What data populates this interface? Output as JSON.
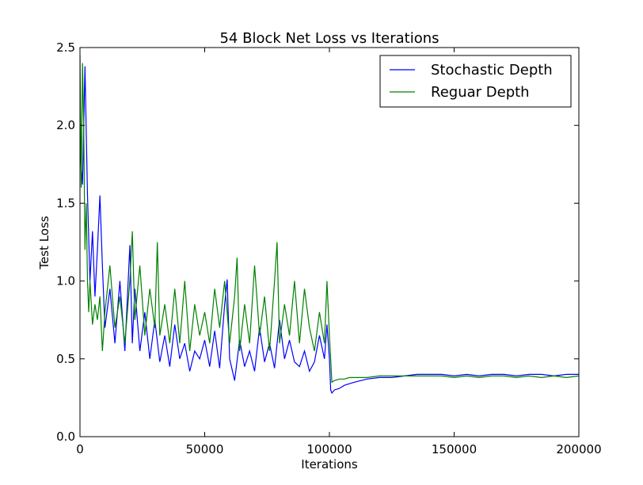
{
  "chart_data": {
    "type": "line",
    "title": "54 Block Net Loss vs Iterations",
    "xlabel": "Iterations",
    "ylabel": "Test Loss",
    "xlim": [
      0,
      200000
    ],
    "ylim": [
      0,
      2.5
    ],
    "xticks": [
      0,
      50000,
      100000,
      150000,
      200000
    ],
    "xtick_labels": [
      "0",
      "50000",
      "100000",
      "150000",
      "200000"
    ],
    "yticks": [
      0,
      0.5,
      1.0,
      1.5,
      2.0,
      2.5
    ],
    "ytick_labels": [
      "0.0",
      "0.5",
      "1.0",
      "1.5",
      "2.0",
      "2.5"
    ],
    "grid": false,
    "legend_position": "top-right",
    "series": [
      {
        "name": "Stochastic Depth",
        "color": "#0000ff",
        "x": [
          0,
          1000,
          2000,
          3000,
          4000,
          5000,
          6000,
          7000,
          8000,
          9000,
          10000,
          12000,
          14000,
          16000,
          18000,
          20000,
          21000,
          22000,
          24000,
          26000,
          28000,
          30000,
          32000,
          34000,
          36000,
          38000,
          40000,
          42000,
          44000,
          46000,
          48000,
          50000,
          52000,
          54000,
          56000,
          58000,
          59000,
          60000,
          62000,
          64000,
          66000,
          68000,
          70000,
          72000,
          74000,
          76000,
          78000,
          80000,
          82000,
          84000,
          86000,
          88000,
          90000,
          92000,
          94000,
          96000,
          98000,
          99000,
          100000,
          100500,
          101000,
          102000,
          104000,
          106000,
          108000,
          110000,
          115000,
          120000,
          125000,
          130000,
          135000,
          140000,
          145000,
          150000,
          155000,
          160000,
          165000,
          170000,
          175000,
          180000,
          185000,
          190000,
          195000,
          200000
        ],
        "y": [
          1.85,
          1.62,
          2.38,
          1.55,
          1.0,
          1.32,
          0.9,
          1.2,
          1.55,
          1.1,
          0.7,
          0.95,
          0.6,
          1.0,
          0.55,
          1.23,
          0.6,
          0.95,
          0.55,
          0.8,
          0.5,
          0.75,
          0.48,
          0.65,
          0.45,
          0.72,
          0.5,
          0.6,
          0.42,
          0.55,
          0.5,
          0.62,
          0.45,
          0.68,
          0.44,
          0.85,
          1.01,
          0.5,
          0.36,
          0.62,
          0.45,
          0.55,
          0.42,
          0.7,
          0.48,
          0.6,
          0.44,
          0.75,
          0.5,
          0.62,
          0.48,
          0.45,
          0.55,
          0.42,
          0.48,
          0.65,
          0.5,
          0.72,
          0.5,
          0.3,
          0.28,
          0.3,
          0.31,
          0.33,
          0.34,
          0.35,
          0.37,
          0.38,
          0.38,
          0.39,
          0.4,
          0.4,
          0.4,
          0.39,
          0.4,
          0.39,
          0.4,
          0.4,
          0.39,
          0.4,
          0.4,
          0.39,
          0.4,
          0.4
        ]
      },
      {
        "name": "Reguar Depth",
        "color": "#008000",
        "x": [
          0,
          500,
          1000,
          1500,
          2000,
          2500,
          3000,
          3500,
          4000,
          5000,
          6000,
          7000,
          8000,
          9000,
          10000,
          12000,
          14000,
          16000,
          18000,
          20000,
          21000,
          22000,
          24000,
          26000,
          28000,
          30000,
          31000,
          32000,
          34000,
          36000,
          38000,
          40000,
          42000,
          44000,
          46000,
          48000,
          50000,
          52000,
          54000,
          56000,
          58000,
          60000,
          62000,
          63000,
          64000,
          66000,
          68000,
          70000,
          72000,
          74000,
          76000,
          78000,
          79000,
          80000,
          82000,
          84000,
          86000,
          88000,
          90000,
          92000,
          94000,
          96000,
          98000,
          99000,
          100000,
          100500,
          101000,
          102000,
          104000,
          106000,
          108000,
          110000,
          115000,
          120000,
          125000,
          130000,
          135000,
          140000,
          145000,
          150000,
          155000,
          160000,
          165000,
          170000,
          175000,
          180000,
          185000,
          190000,
          195000,
          200000
        ],
        "y": [
          2.45,
          1.6,
          2.4,
          2.0,
          1.2,
          1.5,
          1.0,
          0.8,
          1.0,
          0.72,
          0.85,
          0.75,
          0.9,
          0.55,
          0.8,
          1.1,
          0.7,
          0.9,
          0.6,
          1.0,
          1.32,
          0.75,
          1.1,
          0.65,
          0.95,
          0.7,
          1.25,
          0.65,
          0.85,
          0.6,
          0.95,
          0.6,
          1.0,
          0.55,
          0.85,
          0.65,
          0.8,
          0.6,
          0.95,
          0.7,
          1.0,
          0.6,
          0.9,
          1.15,
          0.55,
          0.85,
          0.6,
          1.1,
          0.65,
          0.9,
          0.55,
          1.0,
          1.25,
          0.6,
          0.85,
          0.65,
          1.0,
          0.6,
          0.95,
          0.7,
          0.55,
          0.8,
          0.6,
          1.0,
          0.65,
          0.5,
          0.35,
          0.36,
          0.37,
          0.37,
          0.38,
          0.38,
          0.38,
          0.39,
          0.39,
          0.39,
          0.39,
          0.39,
          0.39,
          0.38,
          0.39,
          0.38,
          0.39,
          0.39,
          0.38,
          0.39,
          0.38,
          0.39,
          0.38,
          0.39
        ]
      }
    ]
  }
}
